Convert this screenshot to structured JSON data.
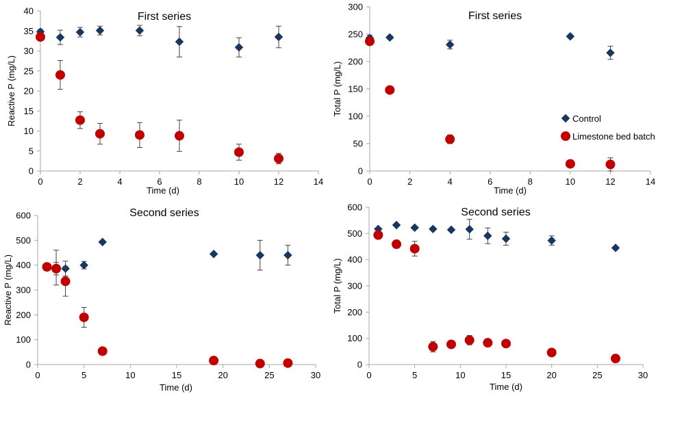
{
  "colors": {
    "control": "#17375E",
    "limestone": "#C00000",
    "axis": "#A6A6A6",
    "errorbar": "#404040"
  },
  "markers": {
    "control": "diamond",
    "limestone": "circle"
  },
  "chart_data": [
    {
      "type": "scatter",
      "title": "First series",
      "xlabel": "Time (d)",
      "ylabel": "Reactive P (mg/L)",
      "xlim": [
        0,
        14
      ],
      "ylim": [
        0,
        40
      ],
      "xticks": [
        0,
        2,
        4,
        6,
        8,
        10,
        12,
        14
      ],
      "yticks": [
        0,
        5,
        10,
        15,
        20,
        25,
        30,
        35,
        40
      ],
      "grid": false,
      "series": [
        {
          "key": "control",
          "x": [
            0,
            1,
            2,
            3,
            5,
            7,
            10,
            12
          ],
          "y": [
            34.8,
            33.4,
            34.7,
            35.1,
            35.1,
            32.3,
            30.9,
            33.5
          ],
          "err": [
            0.6,
            1.8,
            1.2,
            1.1,
            1.3,
            3.8,
            2.4,
            2.7
          ]
        },
        {
          "key": "limestone",
          "x": [
            0,
            1,
            2,
            3,
            5,
            7,
            10,
            12
          ],
          "y": [
            33.5,
            24.0,
            12.7,
            9.3,
            9.0,
            8.8,
            4.7,
            3.1
          ],
          "err": [
            0.5,
            3.6,
            2.1,
            2.6,
            3.1,
            3.9,
            2.0,
            1.3
          ]
        }
      ]
    },
    {
      "type": "scatter",
      "title": "First series",
      "xlabel": "Time (d)",
      "ylabel": "Total P (mg/L)",
      "xlim": [
        0,
        14
      ],
      "ylim": [
        0,
        300
      ],
      "xticks": [
        0,
        2,
        4,
        6,
        8,
        10,
        12,
        14
      ],
      "yticks": [
        0,
        50,
        100,
        150,
        200,
        250,
        300
      ],
      "grid": false,
      "legend": {
        "position": "right",
        "entries": [
          {
            "key": "control",
            "label": "Control"
          },
          {
            "key": "limestone",
            "label": "Limestone bed batch"
          }
        ]
      },
      "series": [
        {
          "key": "control",
          "x": [
            0,
            1,
            4,
            10,
            12
          ],
          "y": [
            243,
            244,
            231,
            246,
            216
          ],
          "err": [
            5,
            3,
            8,
            3,
            12
          ]
        },
        {
          "key": "limestone",
          "x": [
            0,
            1,
            4,
            10,
            12
          ],
          "y": [
            237,
            148,
            58,
            13,
            12
          ],
          "err": [
            4,
            3,
            8,
            4,
            12
          ]
        }
      ]
    },
    {
      "type": "scatter",
      "title": "Second series",
      "xlabel": "Time (d)",
      "ylabel": "Reactive P (mg/L)",
      "xlim": [
        0,
        30
      ],
      "ylim": [
        0,
        600
      ],
      "xticks": [
        0,
        5,
        10,
        15,
        20,
        25,
        30
      ],
      "yticks": [
        0,
        100,
        200,
        300,
        400,
        500,
        600
      ],
      "grid": false,
      "series": [
        {
          "key": "control",
          "x": [
            1,
            2,
            3,
            5,
            7,
            19,
            24,
            27
          ],
          "y": [
            392,
            390,
            386,
            400,
            493,
            445,
            440,
            440
          ],
          "err": [
            5,
            70,
            30,
            15,
            5,
            5,
            60,
            40
          ]
        },
        {
          "key": "limestone",
          "x": [
            1,
            2,
            3,
            5,
            7,
            19,
            24,
            27
          ],
          "y": [
            393,
            386,
            335,
            190,
            54,
            16,
            4,
            6
          ],
          "err": [
            5,
            25,
            60,
            40,
            5,
            3,
            3,
            3
          ]
        }
      ]
    },
    {
      "type": "scatter",
      "title": "Second series",
      "xlabel": "Time (d)",
      "ylabel": "Total P (mg/L)",
      "xlim": [
        0,
        30
      ],
      "ylim": [
        0,
        600
      ],
      "xticks": [
        0,
        5,
        10,
        15,
        20,
        25,
        30
      ],
      "yticks": [
        0,
        100,
        200,
        300,
        400,
        500,
        600
      ],
      "grid": false,
      "series": [
        {
          "key": "control",
          "x": [
            1,
            3,
            5,
            7,
            9,
            11,
            13,
            15,
            20,
            27
          ],
          "y": [
            517,
            532,
            522,
            517,
            514,
            516,
            491,
            480,
            473,
            445
          ],
          "err": [
            5,
            5,
            5,
            5,
            5,
            38,
            30,
            25,
            18,
            5
          ]
        },
        {
          "key": "limestone",
          "x": [
            1,
            3,
            5,
            7,
            9,
            11,
            13,
            15,
            20,
            27
          ],
          "y": [
            494,
            459,
            442,
            68,
            77,
            93,
            83,
            80,
            46,
            23
          ],
          "err": [
            5,
            15,
            28,
            20,
            12,
            18,
            8,
            5,
            5,
            5
          ]
        }
      ]
    }
  ]
}
